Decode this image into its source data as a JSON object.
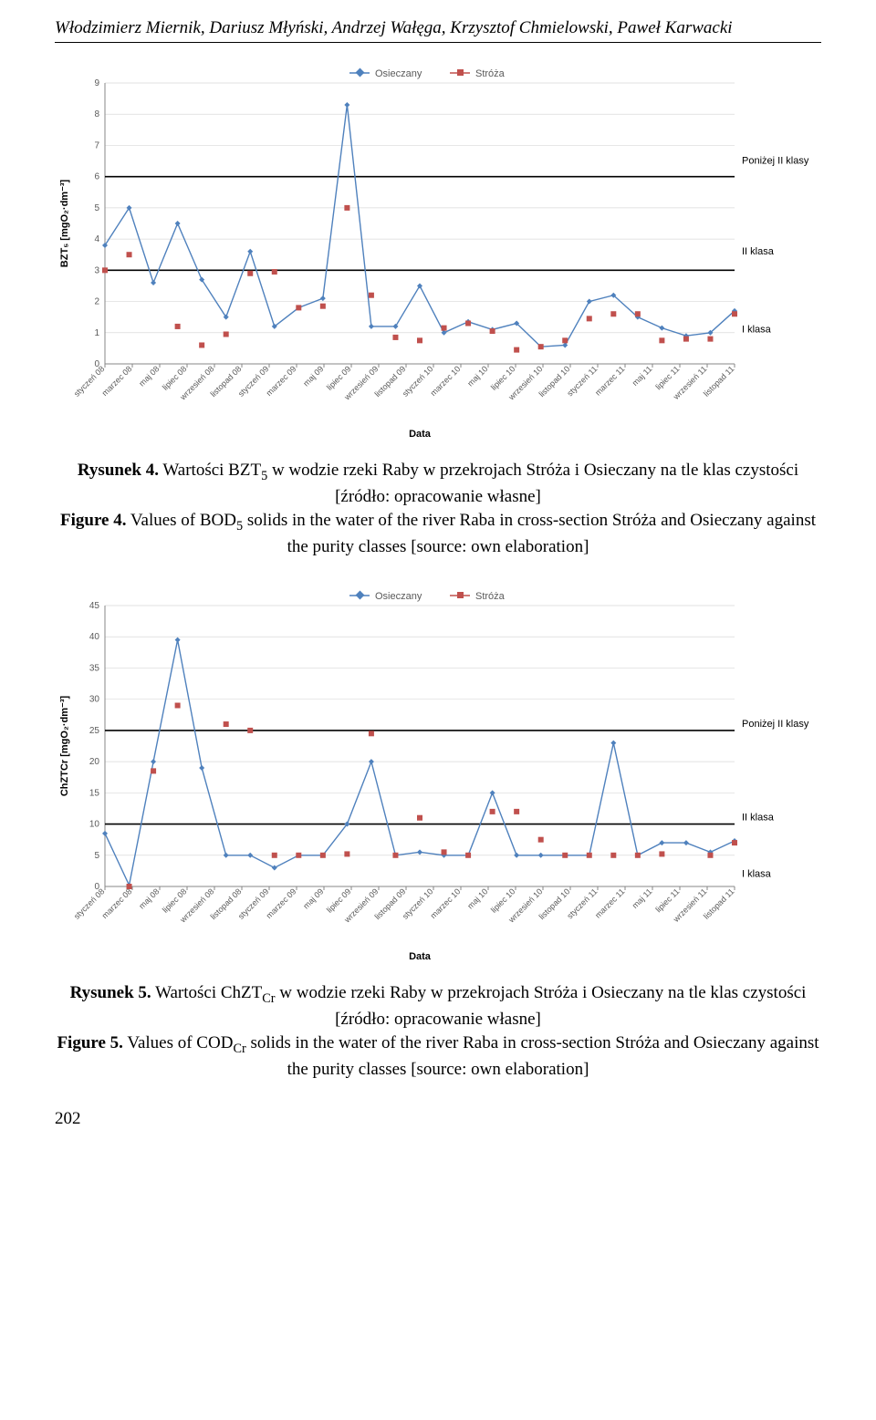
{
  "header": {
    "authors": "Włodzimierz Miernik, Dariusz Młyński, Andrzej Wałęga, Krzysztof Chmielowski, Paweł Karwacki"
  },
  "page_number": "202",
  "chart_common": {
    "x_labels": [
      "styczeń 08",
      "marzec 08",
      "maj 08",
      "lipiec 08",
      "wrzesień 08",
      "listopad 08",
      "styczeń 09",
      "marzec 09",
      "maj 09",
      "lipiec 09",
      "wrzesień 09",
      "listopad 09",
      "styczeń 10",
      "marzec 10",
      "maj 10",
      "lipiec 10",
      "wrzesień 10",
      "listopad 10",
      "styczeń 11",
      "marzec 11",
      "maj 11",
      "lipiec 11",
      "wrzesień 11",
      "listopad 11"
    ],
    "x_axis_label": "Data",
    "legend": [
      "Osieczany",
      "Stróża"
    ],
    "colors": {
      "series1_line": "#4f81bd",
      "series1_marker": "#4f81bd",
      "series2_line": "#c0504d",
      "series2_marker": "#c0504d",
      "gridline": "#d9d9d9",
      "threshold": "#000000",
      "axis": "#878787",
      "text": "#595959",
      "background": "#ffffff"
    },
    "tick_fontsize": 10,
    "label_fontsize": 11,
    "legend_fontsize": 11,
    "bandlabel_fontsize": 11,
    "marker_size": 3,
    "line_width": 1.4,
    "x_label_rotation": -45
  },
  "chart1": {
    "type": "line",
    "y_axis_label": "BZT₅ [mgO₂·dm⁻³]",
    "ylim": [
      0,
      9
    ],
    "ytick_step": 1,
    "thresholds": [
      {
        "y": 3,
        "label": "II klasa"
      },
      {
        "y": 6,
        "label": "Poniżej II klasy"
      }
    ],
    "band_labels": [
      {
        "text": "I klasa",
        "y": 1.1
      },
      {
        "text": "II klasa",
        "y": 3.6
      },
      {
        "text": "Poniżej II klasy",
        "y": 6.5
      }
    ],
    "series": {
      "Osieczany": [
        3.8,
        5.0,
        2.6,
        4.5,
        2.7,
        1.5,
        3.6,
        1.2,
        1.8,
        2.1,
        8.3,
        1.2,
        1.2,
        2.5,
        1.0,
        1.35,
        1.1,
        1.3,
        0.55,
        0.6,
        2.0,
        2.2,
        1.5,
        1.15,
        0.9,
        1.0,
        1.7
      ],
      "Stróża": [
        3.0,
        3.5,
        null,
        1.2,
        0.6,
        0.95,
        2.9,
        2.95,
        1.8,
        1.85,
        5.0,
        2.2,
        0.85,
        0.75,
        1.15,
        1.3,
        1.05,
        0.45,
        0.55,
        0.75,
        1.45,
        1.6,
        1.6,
        0.75,
        0.8,
        0.8,
        1.6
      ]
    },
    "osieczany_style": "line_markers_diamond",
    "stroza_style": "markers_square_no_line"
  },
  "caption1": {
    "pl_bold": "Rysunek 4.",
    "pl_text": " Wartości BZT",
    "pl_sub": "5",
    "pl_rest": " w wodzie rzeki Raby w przekrojach Stróża i Osieczany na tle klas czystości [źródło: opracowanie własne]",
    "en_bold": "Figure 4.",
    "en_text": " Values of BOD",
    "en_sub": "5",
    "en_rest": " solids in the water of the river Raba in cross-section Stróża and Osieczany against the purity classes [source: own elaboration]"
  },
  "chart2": {
    "type": "line",
    "y_axis_label": "ChZTCr [mgO₂·dm⁻³]",
    "ylim": [
      0,
      45
    ],
    "ytick_step": 5,
    "thresholds": [
      {
        "y": 10,
        "label": "II klasa"
      },
      {
        "y": 25,
        "label": "Poniżej II klasy"
      }
    ],
    "band_labels": [
      {
        "text": "I klasa",
        "y": 2
      },
      {
        "text": "II klasa",
        "y": 11
      },
      {
        "text": "Poniżej II klasy",
        "y": 26
      }
    ],
    "series": {
      "Osieczany": [
        8.5,
        0.2,
        20,
        39.5,
        19,
        5,
        5,
        3,
        5,
        5,
        10,
        20,
        5,
        5.5,
        5,
        5,
        15,
        5,
        5,
        5,
        5,
        23,
        5,
        7,
        7,
        5.5,
        7.3
      ],
      "Stróża": [
        null,
        0,
        18.5,
        29,
        null,
        26,
        25,
        5,
        5,
        5,
        5.2,
        24.5,
        5,
        11,
        5.5,
        5,
        12,
        12,
        7.5,
        5,
        5,
        5,
        5,
        5.2,
        null,
        5,
        7
      ]
    },
    "osieczany_style": "line_markers_diamond",
    "stroza_style": "markers_square_no_line"
  },
  "caption2": {
    "pl_bold": "Rysunek 5.",
    "pl_text": " Wartości ChZT",
    "pl_sub": "Cr",
    "pl_rest": " w wodzie rzeki Raby w przekrojach Stróża i Osieczany na tle klas czystości [źródło: opracowanie własne]",
    "en_bold": "Figure 5.",
    "en_text": " Values of COD",
    "en_sub": "Cr",
    "en_rest": " solids in the water of the river Raba in cross-section Stróża and Osieczany against the purity classes [source: own elaboration]"
  }
}
